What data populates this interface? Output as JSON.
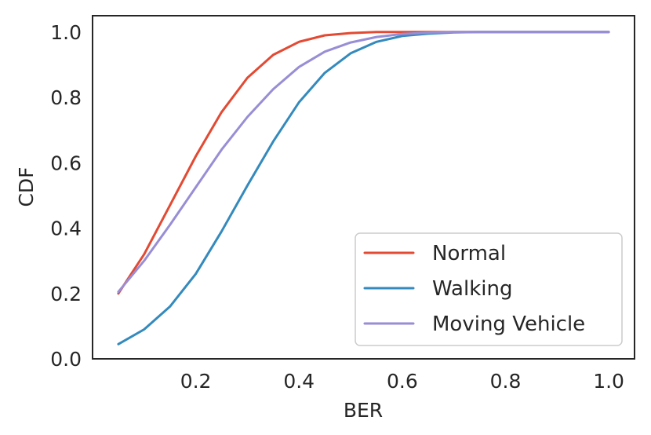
{
  "chart_data": {
    "type": "line",
    "title": "",
    "xlabel": "BER",
    "ylabel": "CDF",
    "xlim": [
      0.0,
      1.05
    ],
    "ylim": [
      0.0,
      1.05
    ],
    "xticks": [
      0.2,
      0.4,
      0.6,
      0.8,
      1.0
    ],
    "xtick_labels": [
      "0.2",
      "0.4",
      "0.6",
      "0.8",
      "1.0"
    ],
    "yticks": [
      0.0,
      0.2,
      0.4,
      0.6,
      0.8,
      1.0
    ],
    "ytick_labels": [
      "0.0",
      "0.2",
      "0.4",
      "0.6",
      "0.8",
      "1.0"
    ],
    "grid": false,
    "legend_position": "lower-right",
    "x": [
      0.05,
      0.1,
      0.15,
      0.2,
      0.25,
      0.3,
      0.35,
      0.4,
      0.45,
      0.5,
      0.55,
      0.6,
      0.65,
      0.7,
      0.75,
      0.8,
      0.85,
      0.9,
      0.95,
      1.0
    ],
    "series": [
      {
        "name": "Normal",
        "color": "#E24A33",
        "values": [
          0.2,
          0.32,
          0.47,
          0.62,
          0.755,
          0.86,
          0.93,
          0.97,
          0.99,
          0.997,
          1.0,
          1.0,
          1.0,
          1.0,
          1.0,
          1.0,
          1.0,
          1.0,
          1.0,
          1.0
        ]
      },
      {
        "name": "Walking",
        "color": "#348ABD",
        "values": [
          0.045,
          0.09,
          0.16,
          0.26,
          0.39,
          0.53,
          0.665,
          0.785,
          0.875,
          0.935,
          0.97,
          0.988,
          0.995,
          0.999,
          1.0,
          1.0,
          1.0,
          1.0,
          1.0,
          1.0
        ]
      },
      {
        "name": "Moving Vehicle",
        "color": "#988ED5",
        "values": [
          0.205,
          0.3,
          0.41,
          0.525,
          0.64,
          0.74,
          0.825,
          0.893,
          0.94,
          0.968,
          0.985,
          0.994,
          0.998,
          1.0,
          1.0,
          1.0,
          1.0,
          1.0,
          1.0,
          1.0
        ]
      }
    ]
  }
}
